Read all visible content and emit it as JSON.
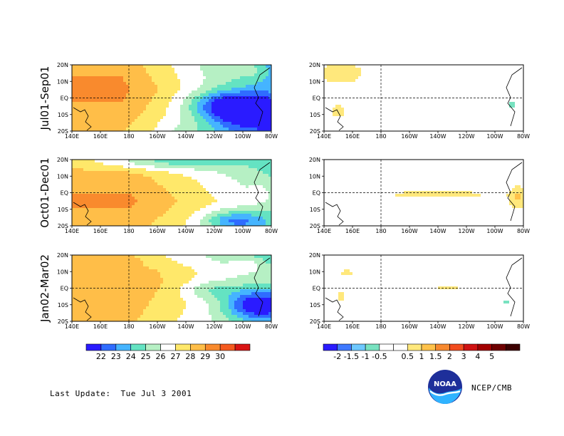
{
  "colors": {
    "sst_scale": [
      "#2a1bff",
      "#2f6cff",
      "#45b4ff",
      "#64e3c2",
      "#b6f0c4",
      "#ffffff",
      "#ffe86a",
      "#ffbe48",
      "#f98a2d",
      "#f55a1f",
      "#d91414",
      "#b30000"
    ],
    "anom_scale": [
      "#2a1bff",
      "#3f79ff",
      "#6ec8ff",
      "#78e2c0",
      "#ffffff",
      "#ffffff",
      "#ffe87c",
      "#ffc24a",
      "#f7892f",
      "#f24c1e",
      "#cf1212",
      "#a20000",
      "#6e0000",
      "#3c0000"
    ]
  },
  "chart_data": [
    {
      "type": "heatmap",
      "row_label": "Jul01-Sep01",
      "quantity": "SST",
      "x_tick_labels": [
        "140E",
        "160E",
        "180",
        "160W",
        "140W",
        "120W",
        "100W",
        "80W"
      ],
      "y_tick_labels": [
        "20S",
        "10S",
        "EQ",
        "10N",
        "20N"
      ],
      "xlim": [
        140,
        280
      ],
      "ylim": [
        -20,
        20
      ],
      "reference_lines": {
        "equator": true,
        "dateline": true
      }
    },
    {
      "type": "heatmap",
      "row_label": "Jul01-Sep01",
      "quantity": "SST anomaly",
      "x_tick_labels": [
        "140E",
        "160E",
        "180",
        "160W",
        "140W",
        "120W",
        "100W",
        "80W"
      ],
      "y_tick_labels": [
        "20S",
        "10S",
        "EQ",
        "10N",
        "20N"
      ],
      "xlim": [
        140,
        280
      ],
      "ylim": [
        -20,
        20
      ],
      "reference_lines": {
        "equator": true,
        "dateline": true
      }
    },
    {
      "type": "heatmap",
      "row_label": "Oct01-Dec01",
      "quantity": "SST",
      "x_tick_labels": [
        "140E",
        "160E",
        "180",
        "160W",
        "140W",
        "120W",
        "100W",
        "80W"
      ],
      "y_tick_labels": [
        "20S",
        "10S",
        "EQ",
        "10N",
        "20N"
      ],
      "xlim": [
        140,
        280
      ],
      "ylim": [
        -20,
        20
      ],
      "reference_lines": {
        "equator": true,
        "dateline": true
      }
    },
    {
      "type": "heatmap",
      "row_label": "Oct01-Dec01",
      "quantity": "SST anomaly",
      "x_tick_labels": [
        "140E",
        "160E",
        "180",
        "160W",
        "140W",
        "120W",
        "100W",
        "80W"
      ],
      "y_tick_labels": [
        "20S",
        "10S",
        "EQ",
        "10N",
        "20N"
      ],
      "xlim": [
        140,
        280
      ],
      "ylim": [
        -20,
        20
      ],
      "reference_lines": {
        "equator": true,
        "dateline": true
      }
    },
    {
      "type": "heatmap",
      "row_label": "Jan02-Mar02",
      "quantity": "SST",
      "x_tick_labels": [
        "140E",
        "160E",
        "180",
        "160W",
        "140W",
        "120W",
        "100W",
        "80W"
      ],
      "y_tick_labels": [
        "20S",
        "10S",
        "EQ",
        "10N",
        "20N"
      ],
      "xlim": [
        140,
        280
      ],
      "ylim": [
        -20,
        20
      ],
      "reference_lines": {
        "equator": true,
        "dateline": true
      }
    },
    {
      "type": "heatmap",
      "row_label": "Jan02-Mar02",
      "quantity": "SST anomaly",
      "x_tick_labels": [
        "140E",
        "160E",
        "180",
        "160W",
        "140W",
        "120W",
        "100W",
        "80W"
      ],
      "y_tick_labels": [
        "20S",
        "10S",
        "EQ",
        "10N",
        "20N"
      ],
      "xlim": [
        140,
        280
      ],
      "ylim": [
        -20,
        20
      ],
      "reference_lines": {
        "equator": true,
        "dateline": true
      }
    }
  ],
  "colorbars": {
    "sst": {
      "labels": [
        "22",
        "23",
        "24",
        "25",
        "26",
        "27",
        "28",
        "29",
        "30"
      ]
    },
    "anomaly": {
      "labels": [
        "-2",
        "-1.5",
        "-1",
        "-0.5",
        "0.5",
        "1",
        "1.5",
        "2",
        "3",
        "4",
        "5"
      ]
    }
  },
  "footer": {
    "last_update_label": "Last Update:",
    "last_update_value": "Tue Jul 3 2001",
    "credit": "NCEP/CMB",
    "logo_text": "NOAA"
  }
}
